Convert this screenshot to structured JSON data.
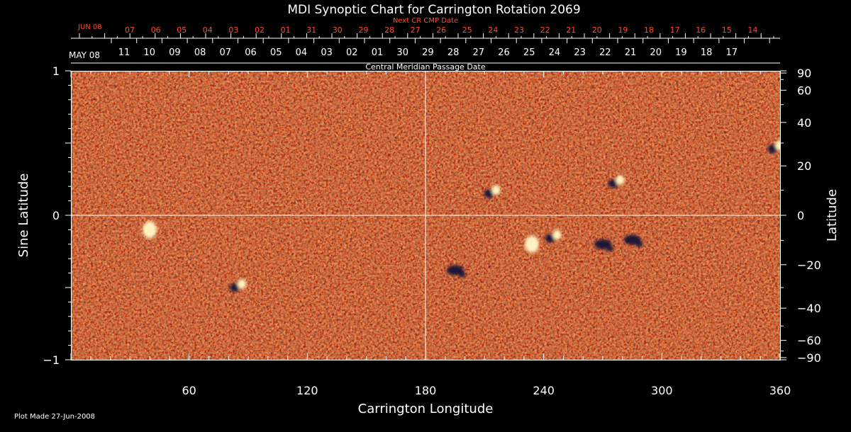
{
  "chart_data": {
    "type": "heatmap",
    "title": "MDI Synoptic Chart for Carrington Rotation 2069",
    "xlabel": "Carrington Longitude",
    "ylabel_left": "Sine Latitude",
    "ylabel_right": "Latitude",
    "xlim": [
      0,
      360
    ],
    "ylim_sine_latitude": [
      -1,
      1
    ],
    "grid": "crosshair at longitude 180 and sine latitude 0",
    "x_ticks": [
      60,
      120,
      180,
      240,
      300,
      360
    ],
    "y_left_ticks": [
      1,
      0,
      -1
    ],
    "y_left_tick_labels": [
      "1",
      "0",
      "−1"
    ],
    "y_right_ticks": [
      90,
      60,
      40,
      20,
      0,
      -20,
      -40,
      -60,
      -90
    ],
    "y_right_tick_labels": [
      "90",
      "60",
      "40",
      "20",
      "0",
      "−20",
      "−40",
      "−60",
      "−90"
    ],
    "colorscale": [
      "#14102e",
      "#b01e0a",
      "#e8481a",
      "#ff6a1e",
      "#ffc878",
      "#fff4d0"
    ],
    "background_color": "#e64a18",
    "next_cr_label": "Next CR CMP Date",
    "next_cr_month": "JUN 08",
    "next_cr_dates": [
      "07",
      "06",
      "05",
      "04",
      "03",
      "02",
      "01",
      "31",
      "30",
      "29",
      "28",
      "27",
      "26",
      "25",
      "24",
      "23",
      "22",
      "21",
      "20",
      "19",
      "18",
      "17",
      "16",
      "15",
      "14"
    ],
    "cmp_month": "MAY 08",
    "cmp_dates": [
      "11",
      "10",
      "09",
      "08",
      "07",
      "06",
      "05",
      "04",
      "03",
      "02",
      "01",
      "30",
      "29",
      "28",
      "27",
      "26",
      "25",
      "24",
      "23",
      "22",
      "21",
      "20",
      "19",
      "18",
      "17"
    ],
    "cmp_axis_label": "Central Meridian Passage Date",
    "active_regions": [
      {
        "lon": 214,
        "sinlat": 0.16,
        "polarity": "bipolar"
      },
      {
        "lon": 277,
        "sinlat": 0.23,
        "polarity": "bipolar"
      },
      {
        "lon": 245,
        "sinlat": -0.15,
        "polarity": "bipolar"
      },
      {
        "lon": 270,
        "sinlat": -0.2,
        "polarity": "negative"
      },
      {
        "lon": 285,
        "sinlat": -0.17,
        "polarity": "negative"
      },
      {
        "lon": 195,
        "sinlat": -0.38,
        "polarity": "negative"
      },
      {
        "lon": 85,
        "sinlat": -0.49,
        "polarity": "bipolar"
      },
      {
        "lon": 40,
        "sinlat": -0.1,
        "polarity": "positive"
      },
      {
        "lon": 358,
        "sinlat": 0.47,
        "polarity": "bipolar"
      },
      {
        "lon": 234,
        "sinlat": -0.2,
        "polarity": "positive"
      }
    ]
  },
  "footer": {
    "plot_made": "Plot Made 27-Jun-2008"
  }
}
